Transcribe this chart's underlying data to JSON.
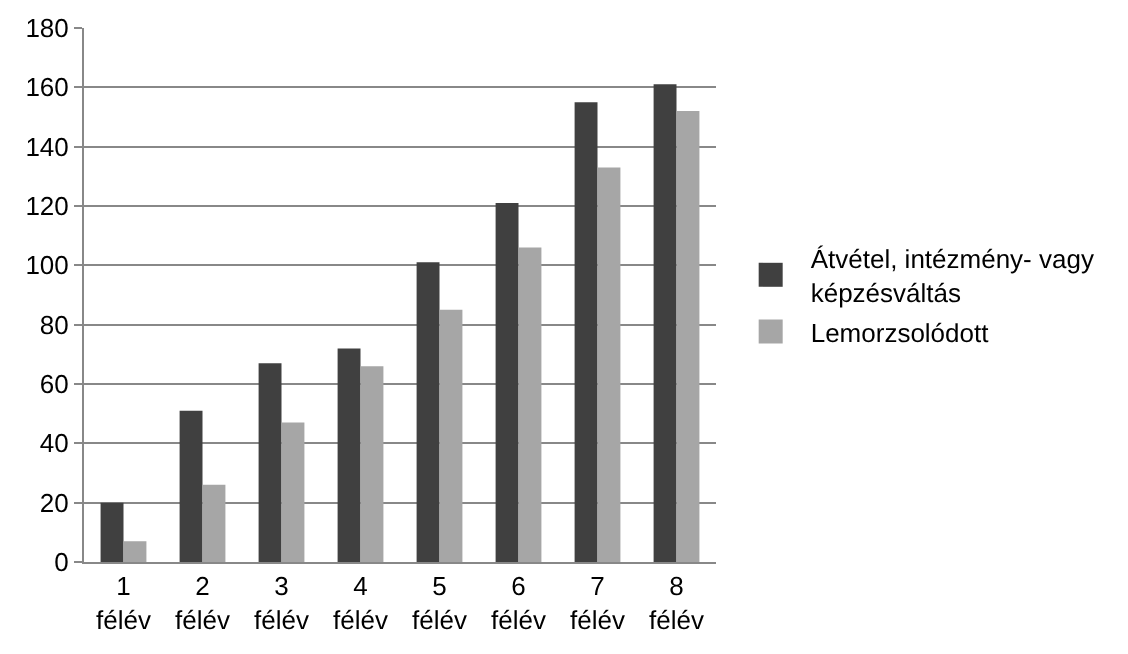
{
  "chart_data": {
    "type": "bar",
    "categories": [
      "1 félév",
      "2 félév",
      "3 félév",
      "4 félév",
      "5 félév",
      "6 félév",
      "7 félév",
      "8 félév"
    ],
    "series": [
      {
        "name": "Átvétel, intézmény- vagy képzésváltás",
        "color": "#404040",
        "values": [
          20,
          51,
          67,
          72,
          101,
          121,
          155,
          161
        ]
      },
      {
        "name": "Lemorzsolódott",
        "color": "#a6a6a6",
        "values": [
          7,
          26,
          47,
          66,
          85,
          106,
          133,
          152
        ]
      }
    ],
    "ylim": [
      0,
      180
    ],
    "yticks": [
      0,
      20,
      40,
      60,
      80,
      100,
      120,
      140,
      160,
      180
    ],
    "grid": "y",
    "legend": "right"
  }
}
